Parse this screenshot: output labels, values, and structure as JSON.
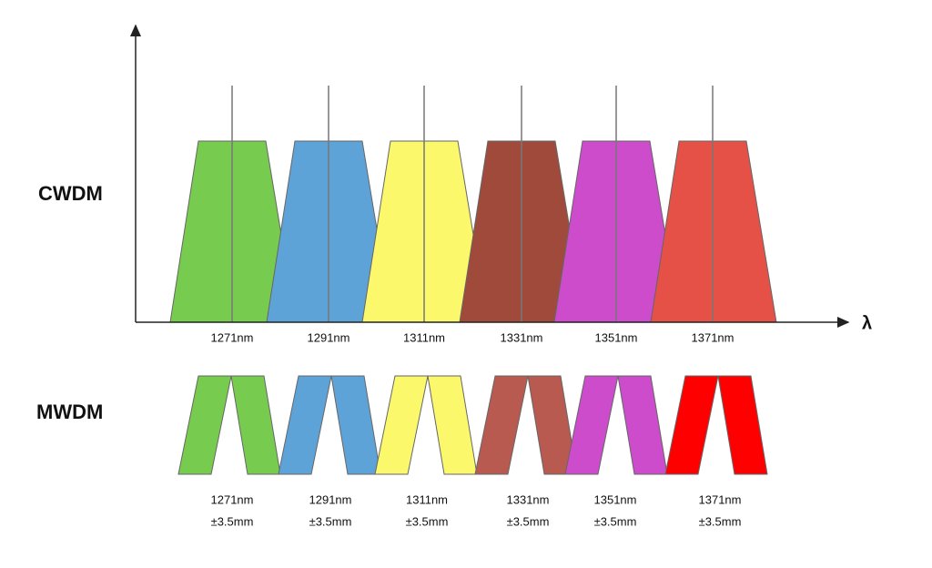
{
  "cwdm": {
    "label": "CWDM",
    "axis_label": "λ",
    "channels": [
      {
        "wavelength": "1271nm",
        "color": "#77cc4f"
      },
      {
        "wavelength": "1291nm",
        "color": "#5ea3d8"
      },
      {
        "wavelength": "1311nm",
        "color": "#fbf86b"
      },
      {
        "wavelength": "1331nm",
        "color": "#a04a3b"
      },
      {
        "wavelength": "1351nm",
        "color": "#cc4ccc"
      },
      {
        "wavelength": "1371nm",
        "color": "#e55047"
      }
    ]
  },
  "mwdm": {
    "label": "MWDM",
    "channels": [
      {
        "wavelength": "1271nm",
        "offset": "±3.5mm",
        "color": "#77cc4f"
      },
      {
        "wavelength": "1291nm",
        "offset": "±3.5mm",
        "color": "#5ea3d8"
      },
      {
        "wavelength": "1311nm",
        "offset": "±3.5mm",
        "color": "#fbf86b"
      },
      {
        "wavelength": "1331nm",
        "offset": "±3.5mm",
        "color": "#b85a50"
      },
      {
        "wavelength": "1351nm",
        "offset": "±3.5mm",
        "color": "#cc4ccc"
      },
      {
        "wavelength": "1371nm",
        "offset": "±3.5mm",
        "color": "#ff0000"
      }
    ]
  }
}
